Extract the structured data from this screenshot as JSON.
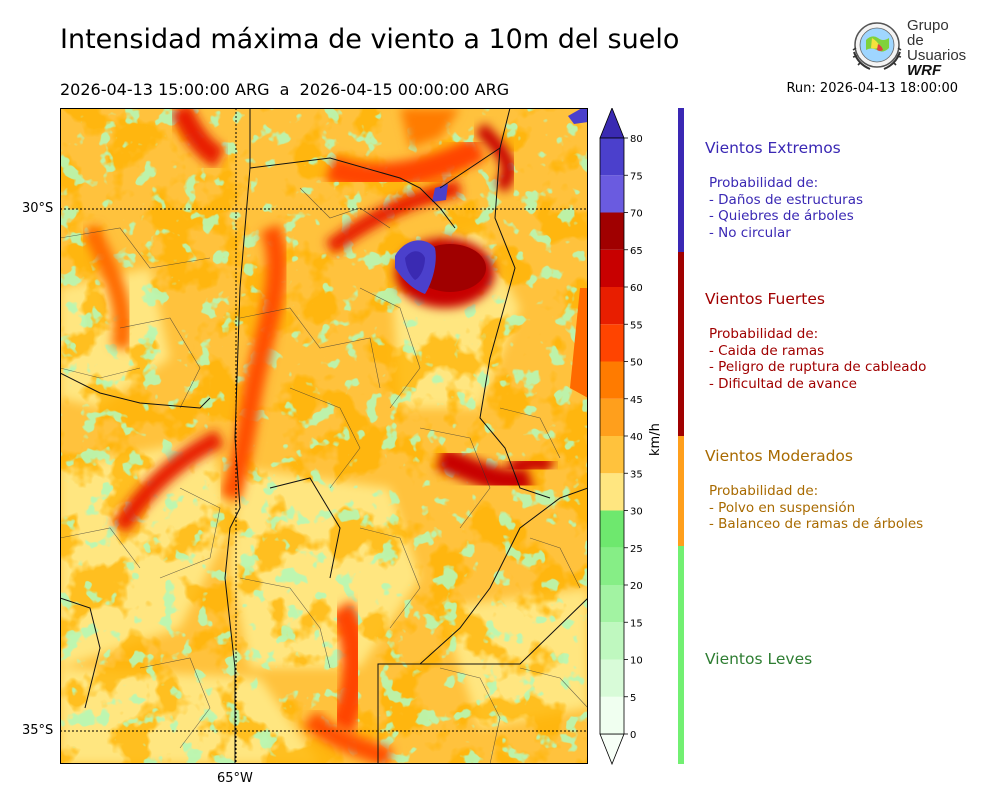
{
  "title": "Intensidad máxima de viento a 10m del suelo",
  "period": {
    "start": "2026-04-13 15:00:00 ARG",
    "sep": "a",
    "end": "2026-04-15 00:00:00 ARG"
  },
  "run": "Run: 2026-04-13 18:00:00",
  "logo": {
    "line1": "Grupo de",
    "line2": "Usuarios",
    "line3": "WRF"
  },
  "map": {
    "lat_ticks": [
      "30°S",
      "35°S"
    ],
    "lon_ticks": [
      "65°W"
    ],
    "palette": [
      "#ffffe0",
      "#ffe680",
      "#ffc23d",
      "#ff9f1c",
      "#ff6a00",
      "#ff3300",
      "#db1200",
      "#b80000",
      "#9a0000",
      "#7a73e6",
      "#5045c8",
      "#3f2ab4",
      "#78f078",
      "#a6f5a6"
    ]
  },
  "colorbar": {
    "unit": "km/h",
    "levels": [
      0,
      5,
      10,
      15,
      20,
      25,
      30,
      35,
      40,
      45,
      50,
      55,
      60,
      65,
      70,
      75,
      80
    ],
    "colors": [
      "#f0fff0",
      "#d8fbd8",
      "#bff8bf",
      "#a2f3a2",
      "#86ee86",
      "#6ee86e",
      "#ffe680",
      "#ffc23d",
      "#ff9f1c",
      "#ff7b00",
      "#ff4400",
      "#e81e00",
      "#c80000",
      "#a00000",
      "#6a5be0",
      "#4b40cc",
      "#3a2ab2"
    ],
    "over_color": "#3a2ab2",
    "under_color": "#f7fff7"
  },
  "categories": [
    {
      "name": "Vientos Extremos",
      "color": "#3a28b4",
      "text_color": "#3a28b4",
      "prob_label": "Probabilidad de:",
      "items": [
        "- Daños de estructuras",
        "- Quiebres de árboles",
        "- No circular"
      ]
    },
    {
      "name": "Vientos Fuertes",
      "color": "#a00000",
      "text_color": "#a00000",
      "prob_label": "Probabilidad de:",
      "items": [
        "- Caida de ramas",
        "- Peligro de ruptura de cableado",
        "- Dificultad de avance"
      ]
    },
    {
      "name": "Vientos Moderados",
      "color": "#ff9f1c",
      "text_color": "#a86a00",
      "prob_label": "Probabilidad de:",
      "items": [
        "- Polvo en suspensión",
        "- Balanceo de ramas de árboles"
      ]
    },
    {
      "name": "Vientos Leves",
      "color": "#72f072",
      "text_color": "#2e7d32",
      "prob_label": "",
      "items": []
    }
  ]
}
